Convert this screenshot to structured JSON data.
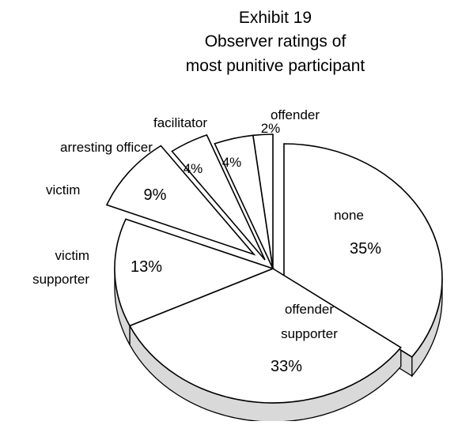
{
  "chart_data": {
    "type": "pie",
    "title_lines": [
      "Exhibit 19",
      "Observer ratings of",
      "most punitive participant"
    ],
    "categories": [
      "none",
      "offender supporter",
      "victim supporter",
      "victim",
      "arresting officer",
      "facilitator",
      "offender"
    ],
    "values": [
      35,
      33,
      13,
      9,
      4,
      4,
      2
    ],
    "value_labels": [
      "35%",
      "33%",
      "13%",
      "9%",
      "4%",
      "4%",
      "2%"
    ],
    "label_lines": [
      [
        "none"
      ],
      [
        "offender",
        "supporter"
      ],
      [
        "victim",
        "supporter"
      ],
      [
        "victim"
      ],
      [
        "arresting officer"
      ],
      [
        "facilitator"
      ],
      [
        "offender"
      ]
    ],
    "style": "3d-exploded",
    "slice_fill": "#ffffff",
    "side_fill": "#d9d9d9",
    "outline_color": "#000000"
  }
}
